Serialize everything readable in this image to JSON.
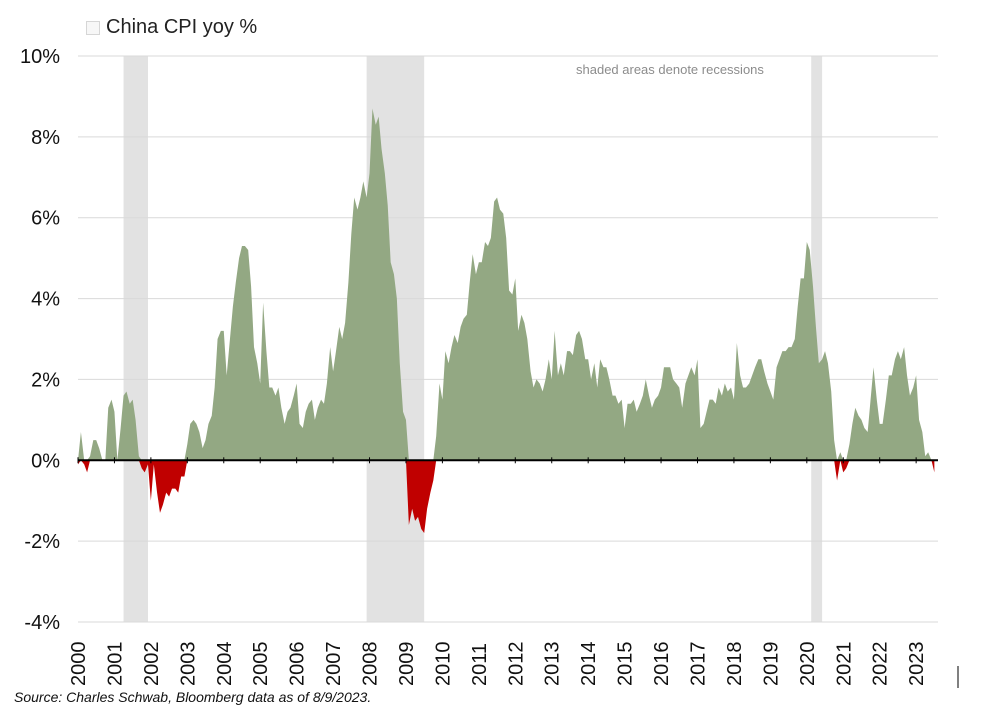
{
  "legend": {
    "label": "China CPI yoy %"
  },
  "annotation": "shaded areas denote recessions",
  "source": "Source: Charles Schwab, Bloomberg data as of 8/9/2023.",
  "colors": {
    "positive": "#93a883",
    "negative": "#c00000",
    "recession": "#e2e2e2",
    "grid": "#d9d9d9",
    "zero_line": "#000000"
  },
  "chart_data": {
    "type": "area",
    "title": "",
    "xlabel": "",
    "ylabel": "",
    "ylim": [
      -4,
      10
    ],
    "xlim": [
      2000.0,
      2023.6
    ],
    "yticks": [
      -4,
      -2,
      0,
      2,
      4,
      6,
      8,
      10
    ],
    "ytick_labels": [
      "-4%",
      "-2%",
      "0%",
      "2%",
      "4%",
      "6%",
      "8%",
      "10%"
    ],
    "xtick_labels": [
      "2000",
      "2001",
      "2002",
      "2003",
      "2004",
      "2005",
      "2006",
      "2007",
      "2008",
      "2009",
      "2010",
      "2011",
      "2012",
      "2013",
      "2014",
      "2015",
      "2016",
      "2017",
      "2018",
      "2019",
      "2020",
      "2021",
      "2022",
      "2023"
    ],
    "grid": true,
    "legend_position": "top-left",
    "recessions": [
      [
        2001.25,
        2001.92
      ],
      [
        2007.92,
        2009.5
      ],
      [
        2020.12,
        2020.42
      ]
    ],
    "series": [
      {
        "name": "China CPI yoy %",
        "points": [
          [
            2000.0,
            -0.1
          ],
          [
            2000.08,
            0.7
          ],
          [
            2000.17,
            -0.1
          ],
          [
            2000.25,
            -0.3
          ],
          [
            2000.33,
            0.1
          ],
          [
            2000.42,
            0.5
          ],
          [
            2000.5,
            0.5
          ],
          [
            2000.58,
            0.3
          ],
          [
            2000.67,
            0.0
          ],
          [
            2000.75,
            0.0
          ],
          [
            2000.83,
            1.3
          ],
          [
            2000.92,
            1.5
          ],
          [
            2001.0,
            1.2
          ],
          [
            2001.08,
            0.0
          ],
          [
            2001.17,
            0.8
          ],
          [
            2001.25,
            1.6
          ],
          [
            2001.33,
            1.7
          ],
          [
            2001.42,
            1.4
          ],
          [
            2001.5,
            1.5
          ],
          [
            2001.58,
            1.0
          ],
          [
            2001.67,
            0.1
          ],
          [
            2001.75,
            -0.2
          ],
          [
            2001.83,
            -0.3
          ],
          [
            2001.92,
            -0.1
          ],
          [
            2002.0,
            -1.0
          ],
          [
            2002.08,
            -0.1
          ],
          [
            2002.17,
            -0.8
          ],
          [
            2002.25,
            -1.3
          ],
          [
            2002.33,
            -1.1
          ],
          [
            2002.42,
            -0.8
          ],
          [
            2002.5,
            -0.9
          ],
          [
            2002.58,
            -0.7
          ],
          [
            2002.67,
            -0.7
          ],
          [
            2002.75,
            -0.8
          ],
          [
            2002.83,
            -0.4
          ],
          [
            2002.92,
            -0.4
          ],
          [
            2003.0,
            0.4
          ],
          [
            2003.08,
            0.9
          ],
          [
            2003.17,
            1.0
          ],
          [
            2003.25,
            0.9
          ],
          [
            2003.33,
            0.7
          ],
          [
            2003.42,
            0.3
          ],
          [
            2003.5,
            0.5
          ],
          [
            2003.58,
            0.9
          ],
          [
            2003.67,
            1.1
          ],
          [
            2003.75,
            1.8
          ],
          [
            2003.83,
            3.0
          ],
          [
            2003.92,
            3.2
          ],
          [
            2004.0,
            3.2
          ],
          [
            2004.08,
            2.1
          ],
          [
            2004.17,
            3.0
          ],
          [
            2004.25,
            3.8
          ],
          [
            2004.33,
            4.4
          ],
          [
            2004.42,
            5.0
          ],
          [
            2004.5,
            5.3
          ],
          [
            2004.58,
            5.3
          ],
          [
            2004.67,
            5.2
          ],
          [
            2004.75,
            4.3
          ],
          [
            2004.83,
            2.8
          ],
          [
            2004.92,
            2.4
          ],
          [
            2005.0,
            1.9
          ],
          [
            2005.08,
            3.9
          ],
          [
            2005.17,
            2.7
          ],
          [
            2005.25,
            1.8
          ],
          [
            2005.33,
            1.8
          ],
          [
            2005.42,
            1.6
          ],
          [
            2005.5,
            1.8
          ],
          [
            2005.58,
            1.3
          ],
          [
            2005.67,
            0.9
          ],
          [
            2005.75,
            1.2
          ],
          [
            2005.83,
            1.3
          ],
          [
            2005.92,
            1.6
          ],
          [
            2006.0,
            1.9
          ],
          [
            2006.08,
            0.9
          ],
          [
            2006.17,
            0.8
          ],
          [
            2006.25,
            1.2
          ],
          [
            2006.33,
            1.4
          ],
          [
            2006.42,
            1.5
          ],
          [
            2006.5,
            1.0
          ],
          [
            2006.58,
            1.3
          ],
          [
            2006.67,
            1.5
          ],
          [
            2006.75,
            1.4
          ],
          [
            2006.83,
            1.9
          ],
          [
            2006.92,
            2.8
          ],
          [
            2007.0,
            2.2
          ],
          [
            2007.08,
            2.7
          ],
          [
            2007.17,
            3.3
          ],
          [
            2007.25,
            3.0
          ],
          [
            2007.33,
            3.4
          ],
          [
            2007.42,
            4.4
          ],
          [
            2007.5,
            5.6
          ],
          [
            2007.58,
            6.5
          ],
          [
            2007.67,
            6.2
          ],
          [
            2007.75,
            6.5
          ],
          [
            2007.83,
            6.9
          ],
          [
            2007.92,
            6.5
          ],
          [
            2008.0,
            7.1
          ],
          [
            2008.08,
            8.7
          ],
          [
            2008.17,
            8.3
          ],
          [
            2008.25,
            8.5
          ],
          [
            2008.33,
            7.7
          ],
          [
            2008.42,
            7.1
          ],
          [
            2008.5,
            6.3
          ],
          [
            2008.58,
            4.9
          ],
          [
            2008.67,
            4.6
          ],
          [
            2008.75,
            4.0
          ],
          [
            2008.83,
            2.4
          ],
          [
            2008.92,
            1.2
          ],
          [
            2009.0,
            1.0
          ],
          [
            2009.08,
            -1.6
          ],
          [
            2009.17,
            -1.2
          ],
          [
            2009.25,
            -1.5
          ],
          [
            2009.33,
            -1.4
          ],
          [
            2009.42,
            -1.7
          ],
          [
            2009.5,
            -1.8
          ],
          [
            2009.58,
            -1.2
          ],
          [
            2009.67,
            -0.8
          ],
          [
            2009.75,
            -0.5
          ],
          [
            2009.83,
            0.6
          ],
          [
            2009.92,
            1.9
          ],
          [
            2010.0,
            1.5
          ],
          [
            2010.08,
            2.7
          ],
          [
            2010.17,
            2.4
          ],
          [
            2010.25,
            2.8
          ],
          [
            2010.33,
            3.1
          ],
          [
            2010.42,
            2.9
          ],
          [
            2010.5,
            3.3
          ],
          [
            2010.58,
            3.5
          ],
          [
            2010.67,
            3.6
          ],
          [
            2010.75,
            4.4
          ],
          [
            2010.83,
            5.1
          ],
          [
            2010.92,
            4.6
          ],
          [
            2011.0,
            4.9
          ],
          [
            2011.08,
            4.9
          ],
          [
            2011.17,
            5.4
          ],
          [
            2011.25,
            5.3
          ],
          [
            2011.33,
            5.5
          ],
          [
            2011.42,
            6.4
          ],
          [
            2011.5,
            6.5
          ],
          [
            2011.58,
            6.2
          ],
          [
            2011.67,
            6.1
          ],
          [
            2011.75,
            5.5
          ],
          [
            2011.83,
            4.2
          ],
          [
            2011.92,
            4.1
          ],
          [
            2012.0,
            4.5
          ],
          [
            2012.08,
            3.2
          ],
          [
            2012.17,
            3.6
          ],
          [
            2012.25,
            3.4
          ],
          [
            2012.33,
            3.0
          ],
          [
            2012.42,
            2.2
          ],
          [
            2012.5,
            1.8
          ],
          [
            2012.58,
            2.0
          ],
          [
            2012.67,
            1.9
          ],
          [
            2012.75,
            1.7
          ],
          [
            2012.83,
            2.0
          ],
          [
            2012.92,
            2.5
          ],
          [
            2013.0,
            2.0
          ],
          [
            2013.08,
            3.2
          ],
          [
            2013.17,
            2.1
          ],
          [
            2013.25,
            2.4
          ],
          [
            2013.33,
            2.1
          ],
          [
            2013.42,
            2.7
          ],
          [
            2013.5,
            2.7
          ],
          [
            2013.58,
            2.6
          ],
          [
            2013.67,
            3.1
          ],
          [
            2013.75,
            3.2
          ],
          [
            2013.83,
            3.0
          ],
          [
            2013.92,
            2.5
          ],
          [
            2014.0,
            2.5
          ],
          [
            2014.08,
            2.0
          ],
          [
            2014.17,
            2.4
          ],
          [
            2014.25,
            1.8
          ],
          [
            2014.33,
            2.5
          ],
          [
            2014.42,
            2.3
          ],
          [
            2014.5,
            2.3
          ],
          [
            2014.58,
            2.0
          ],
          [
            2014.67,
            1.6
          ],
          [
            2014.75,
            1.6
          ],
          [
            2014.83,
            1.4
          ],
          [
            2014.92,
            1.5
          ],
          [
            2015.0,
            0.8
          ],
          [
            2015.08,
            1.4
          ],
          [
            2015.17,
            1.4
          ],
          [
            2015.25,
            1.5
          ],
          [
            2015.33,
            1.2
          ],
          [
            2015.42,
            1.4
          ],
          [
            2015.5,
            1.6
          ],
          [
            2015.58,
            2.0
          ],
          [
            2015.67,
            1.6
          ],
          [
            2015.75,
            1.3
          ],
          [
            2015.83,
            1.5
          ],
          [
            2015.92,
            1.6
          ],
          [
            2016.0,
            1.8
          ],
          [
            2016.08,
            2.3
          ],
          [
            2016.17,
            2.3
          ],
          [
            2016.25,
            2.3
          ],
          [
            2016.33,
            2.0
          ],
          [
            2016.42,
            1.9
          ],
          [
            2016.5,
            1.8
          ],
          [
            2016.58,
            1.3
          ],
          [
            2016.67,
            1.9
          ],
          [
            2016.75,
            2.1
          ],
          [
            2016.83,
            2.3
          ],
          [
            2016.92,
            2.1
          ],
          [
            2017.0,
            2.5
          ],
          [
            2017.08,
            0.8
          ],
          [
            2017.17,
            0.9
          ],
          [
            2017.25,
            1.2
          ],
          [
            2017.33,
            1.5
          ],
          [
            2017.42,
            1.5
          ],
          [
            2017.5,
            1.4
          ],
          [
            2017.58,
            1.8
          ],
          [
            2017.67,
            1.6
          ],
          [
            2017.75,
            1.9
          ],
          [
            2017.83,
            1.7
          ],
          [
            2017.92,
            1.8
          ],
          [
            2018.0,
            1.5
          ],
          [
            2018.08,
            2.9
          ],
          [
            2018.17,
            2.1
          ],
          [
            2018.25,
            1.8
          ],
          [
            2018.33,
            1.8
          ],
          [
            2018.42,
            1.9
          ],
          [
            2018.5,
            2.1
          ],
          [
            2018.58,
            2.3
          ],
          [
            2018.67,
            2.5
          ],
          [
            2018.75,
            2.5
          ],
          [
            2018.83,
            2.2
          ],
          [
            2018.92,
            1.9
          ],
          [
            2019.0,
            1.7
          ],
          [
            2019.08,
            1.5
          ],
          [
            2019.17,
            2.3
          ],
          [
            2019.25,
            2.5
          ],
          [
            2019.33,
            2.7
          ],
          [
            2019.42,
            2.7
          ],
          [
            2019.5,
            2.8
          ],
          [
            2019.58,
            2.8
          ],
          [
            2019.67,
            3.0
          ],
          [
            2019.75,
            3.8
          ],
          [
            2019.83,
            4.5
          ],
          [
            2019.92,
            4.5
          ],
          [
            2020.0,
            5.4
          ],
          [
            2020.08,
            5.2
          ],
          [
            2020.17,
            4.3
          ],
          [
            2020.25,
            3.3
          ],
          [
            2020.33,
            2.4
          ],
          [
            2020.42,
            2.5
          ],
          [
            2020.5,
            2.7
          ],
          [
            2020.58,
            2.4
          ],
          [
            2020.67,
            1.7
          ],
          [
            2020.75,
            0.5
          ],
          [
            2020.83,
            -0.5
          ],
          [
            2020.92,
            0.2
          ],
          [
            2021.0,
            -0.3
          ],
          [
            2021.08,
            -0.2
          ],
          [
            2021.17,
            0.4
          ],
          [
            2021.25,
            0.9
          ],
          [
            2021.33,
            1.3
          ],
          [
            2021.42,
            1.1
          ],
          [
            2021.5,
            1.0
          ],
          [
            2021.58,
            0.8
          ],
          [
            2021.67,
            0.7
          ],
          [
            2021.75,
            1.5
          ],
          [
            2021.83,
            2.3
          ],
          [
            2021.92,
            1.5
          ],
          [
            2022.0,
            0.9
          ],
          [
            2022.08,
            0.9
          ],
          [
            2022.17,
            1.5
          ],
          [
            2022.25,
            2.1
          ],
          [
            2022.33,
            2.1
          ],
          [
            2022.42,
            2.5
          ],
          [
            2022.5,
            2.7
          ],
          [
            2022.58,
            2.5
          ],
          [
            2022.67,
            2.8
          ],
          [
            2022.75,
            2.1
          ],
          [
            2022.83,
            1.6
          ],
          [
            2022.92,
            1.8
          ],
          [
            2023.0,
            2.1
          ],
          [
            2023.08,
            1.0
          ],
          [
            2023.17,
            0.7
          ],
          [
            2023.25,
            0.1
          ],
          [
            2023.33,
            0.2
          ],
          [
            2023.42,
            0.0
          ],
          [
            2023.5,
            -0.3
          ]
        ]
      }
    ]
  }
}
